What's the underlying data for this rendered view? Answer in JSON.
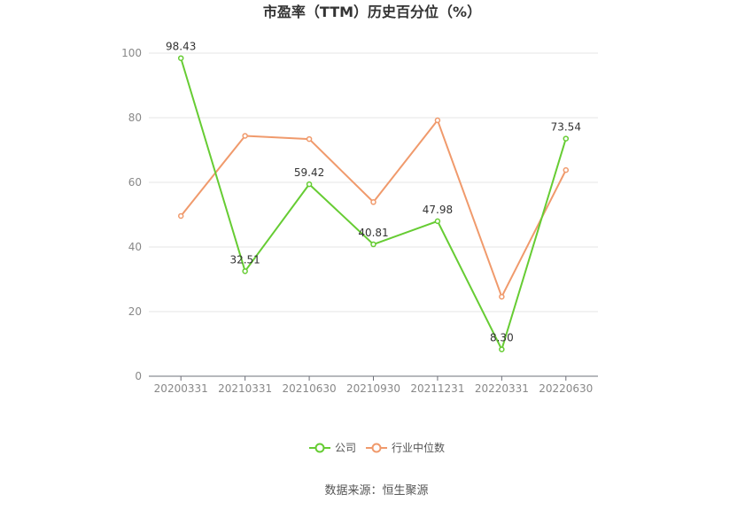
{
  "chart_data": {
    "type": "line",
    "title": "市盈率（TTM）历史百分位（%）",
    "categories": [
      "20200331",
      "20210331",
      "20210630",
      "20210930",
      "20211231",
      "20220331",
      "20220630"
    ],
    "series": [
      {
        "name": "公司",
        "color": "#66cc33",
        "values": [
          98.43,
          32.51,
          59.42,
          40.81,
          47.98,
          8.3,
          73.54
        ],
        "labels": [
          "98.43",
          "32.51",
          "59.42",
          "40.81",
          "47.98",
          "8.30",
          "73.54"
        ]
      },
      {
        "name": "行业中位数",
        "color": "#f09a6c",
        "values": [
          49.6,
          74.4,
          73.4,
          53.9,
          79.2,
          24.6,
          63.8
        ]
      }
    ],
    "ylim": [
      0,
      100
    ],
    "yticks": [
      0,
      20,
      40,
      60,
      80,
      100
    ],
    "grid": true,
    "legend": "bottom-center"
  },
  "source": "数据来源：恒生聚源"
}
